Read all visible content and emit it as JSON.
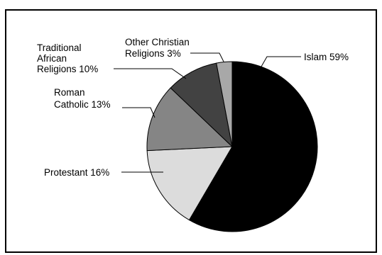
{
  "chart_data": {
    "type": "pie",
    "title": "",
    "slices": [
      {
        "label": "Islam",
        "value": 59,
        "label_text": "Islam 59%",
        "color": "#000000"
      },
      {
        "label": "Protestant",
        "value": 16,
        "label_text": "Protestant 16%",
        "color": "#dcdcdc"
      },
      {
        "label": "Roman Catholic",
        "value": 13,
        "label_text": "Roman Catholic 13%",
        "color": "#858585"
      },
      {
        "label": "Traditional African Religions",
        "value": 10,
        "label_text": "Traditional African Religions 10%",
        "color": "#424242"
      },
      {
        "label": "Other Christian Religions",
        "value": 3,
        "label_text": "Other Christian Religions 3%",
        "color": "#a8a8a8"
      }
    ],
    "label_lines": {
      "islam": [
        "Islam 59%"
      ],
      "protestant": [
        "Protestant 16%"
      ],
      "roman_catholic": [
        "Roman",
        "Catholic 13%"
      ],
      "traditional": [
        "Traditional",
        "African",
        "Religions 10%"
      ],
      "other_christian": [
        "Other Christian",
        "Religions 3%"
      ]
    },
    "units": "%",
    "legend": "none (callout labels)"
  }
}
